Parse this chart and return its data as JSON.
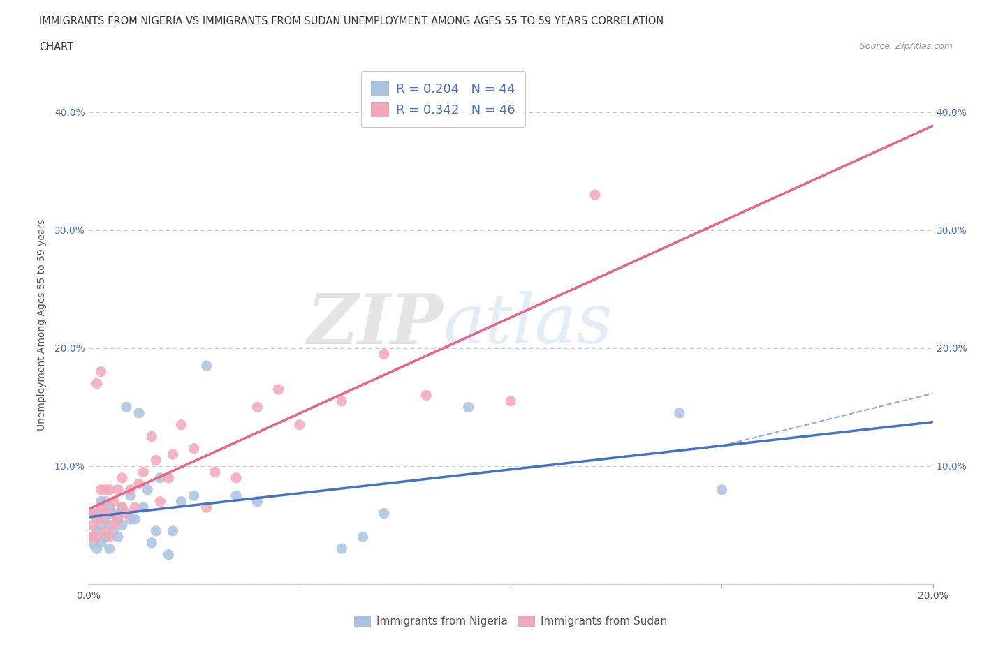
{
  "title_line1": "IMMIGRANTS FROM NIGERIA VS IMMIGRANTS FROM SUDAN UNEMPLOYMENT AMONG AGES 55 TO 59 YEARS CORRELATION",
  "title_line2": "CHART",
  "source": "Source: ZipAtlas.com",
  "ylabel": "Unemployment Among Ages 55 to 59 years",
  "xlim": [
    0.0,
    0.2
  ],
  "ylim": [
    0.0,
    0.44
  ],
  "xticks": [
    0.0,
    0.05,
    0.1,
    0.15,
    0.2
  ],
  "xtick_labels": [
    "0.0%",
    "",
    "",
    "",
    "20.0%"
  ],
  "yticks": [
    0.0,
    0.1,
    0.2,
    0.3,
    0.4
  ],
  "ytick_labels": [
    "",
    "10.0%",
    "20.0%",
    "30.0%",
    "40.0%"
  ],
  "nigeria_color": "#a8c4e0",
  "sudan_color": "#f4a7b9",
  "nigeria_line_color": "#4472c4",
  "sudan_line_color": "#e8638c",
  "R_nigeria": 0.204,
  "N_nigeria": 44,
  "R_sudan": 0.342,
  "N_sudan": 46,
  "watermark_zip": "ZIP",
  "watermark_atlas": "atlas",
  "legend_label_nigeria": "Immigrants from Nigeria",
  "legend_label_sudan": "Immigrants from Sudan",
  "nigeria_x": [
    0.0,
    0.001,
    0.001,
    0.002,
    0.002,
    0.002,
    0.003,
    0.003,
    0.003,
    0.004,
    0.004,
    0.004,
    0.005,
    0.005,
    0.005,
    0.006,
    0.006,
    0.007,
    0.007,
    0.008,
    0.008,
    0.009,
    0.01,
    0.01,
    0.011,
    0.012,
    0.013,
    0.014,
    0.015,
    0.016,
    0.017,
    0.019,
    0.02,
    0.022,
    0.025,
    0.028,
    0.035,
    0.04,
    0.06,
    0.065,
    0.07,
    0.09,
    0.14,
    0.15
  ],
  "nigeria_y": [
    0.04,
    0.035,
    0.06,
    0.03,
    0.045,
    0.06,
    0.035,
    0.05,
    0.07,
    0.04,
    0.055,
    0.07,
    0.03,
    0.05,
    0.065,
    0.045,
    0.06,
    0.04,
    0.055,
    0.05,
    0.065,
    0.15,
    0.055,
    0.075,
    0.055,
    0.145,
    0.065,
    0.08,
    0.035,
    0.045,
    0.09,
    0.025,
    0.045,
    0.07,
    0.075,
    0.185,
    0.075,
    0.07,
    0.03,
    0.04,
    0.06,
    0.15,
    0.145,
    0.08
  ],
  "sudan_x": [
    0.0,
    0.001,
    0.001,
    0.001,
    0.002,
    0.002,
    0.002,
    0.003,
    0.003,
    0.003,
    0.003,
    0.004,
    0.004,
    0.004,
    0.005,
    0.005,
    0.005,
    0.006,
    0.006,
    0.007,
    0.007,
    0.008,
    0.008,
    0.009,
    0.01,
    0.011,
    0.012,
    0.013,
    0.015,
    0.016,
    0.017,
    0.019,
    0.02,
    0.022,
    0.025,
    0.028,
    0.03,
    0.035,
    0.04,
    0.045,
    0.05,
    0.06,
    0.07,
    0.08,
    0.1,
    0.12
  ],
  "sudan_y": [
    0.04,
    0.04,
    0.05,
    0.06,
    0.04,
    0.055,
    0.17,
    0.055,
    0.065,
    0.08,
    0.18,
    0.045,
    0.06,
    0.08,
    0.04,
    0.06,
    0.08,
    0.05,
    0.07,
    0.055,
    0.08,
    0.065,
    0.09,
    0.06,
    0.08,
    0.065,
    0.085,
    0.095,
    0.125,
    0.105,
    0.07,
    0.09,
    0.11,
    0.135,
    0.115,
    0.065,
    0.095,
    0.09,
    0.15,
    0.165,
    0.135,
    0.155,
    0.195,
    0.16,
    0.155,
    0.33
  ],
  "grid_color": "#cccccc",
  "background_color": "#ffffff"
}
